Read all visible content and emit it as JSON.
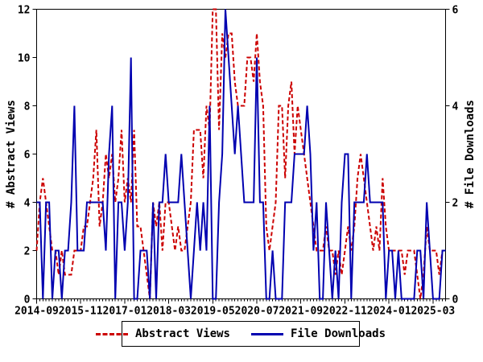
{
  "chart_data": {
    "type": "line",
    "title": "",
    "x_start": "2014-09",
    "x_end": "2025-07",
    "months_count": 131,
    "x_tick_labels": [
      "2014-09",
      "2015-11",
      "2017-01",
      "2018-03",
      "2019-05",
      "2020-07",
      "2021-09",
      "2022-11",
      "2024-01",
      "2025-03"
    ],
    "x_tick_indices": [
      0,
      14,
      28,
      42,
      56,
      70,
      84,
      98,
      112,
      126
    ],
    "x_minor_tick_every_months": 1,
    "grid": "off",
    "left_axis": {
      "label": "# Abstract Views",
      "min": 0,
      "max": 12,
      "ticks": [
        0,
        2,
        4,
        6,
        8,
        10,
        12
      ]
    },
    "right_axis": {
      "label": "# File Downloads",
      "min": 0,
      "max": 6,
      "ticks": [
        0,
        2,
        4,
        6
      ]
    },
    "legend": {
      "position": "bottom-center"
    },
    "series": [
      {
        "name": "Abstract Views",
        "axis": "left",
        "color": "#cc0000",
        "style": "dashed",
        "values": [
          2,
          4,
          5,
          4,
          3,
          2,
          2,
          1,
          2,
          1,
          1,
          1,
          2,
          2,
          2,
          3,
          3,
          4,
          5,
          7,
          3,
          4,
          6,
          5,
          6,
          4,
          5,
          7,
          4,
          5,
          4,
          7,
          3,
          3,
          2,
          1,
          0,
          4,
          3,
          4,
          2,
          4,
          4,
          3,
          2,
          3,
          2,
          2,
          3,
          4,
          7,
          7,
          7,
          5,
          8,
          7,
          12,
          12,
          7,
          11,
          10,
          11,
          11,
          9,
          8,
          8,
          8,
          10,
          10,
          9,
          11,
          9,
          8,
          3,
          2,
          3,
          4,
          8,
          8,
          5,
          8,
          9,
          6,
          8,
          7,
          6,
          5,
          4,
          3,
          2,
          2,
          2,
          3,
          2,
          2,
          1,
          2,
          1,
          2,
          3,
          2,
          3,
          5,
          6,
          5,
          4,
          3,
          2,
          3,
          2,
          5,
          3,
          2,
          2,
          2,
          2,
          2,
          1,
          2,
          2,
          2,
          1,
          0,
          1,
          3,
          2,
          2,
          2,
          1,
          2,
          2
        ]
      },
      {
        "name": "File Downloads",
        "axis": "right",
        "color": "#0000b0",
        "style": "solid",
        "values": [
          2,
          2,
          0,
          2,
          2,
          0,
          1,
          1,
          0,
          1,
          1,
          2,
          4,
          1,
          1,
          1,
          2,
          2,
          2,
          2,
          2,
          2,
          1,
          3,
          4,
          0,
          2,
          2,
          1,
          2,
          5,
          0,
          0,
          1,
          1,
          1,
          0,
          2,
          0,
          2,
          2,
          3,
          2,
          2,
          2,
          2,
          3,
          2,
          1,
          0,
          1,
          2,
          1,
          2,
          1,
          4,
          0,
          0,
          2,
          3,
          6,
          5,
          4,
          3,
          4,
          3,
          2,
          2,
          2,
          2,
          5,
          2,
          2,
          0,
          0,
          1,
          0,
          0,
          0,
          2,
          2,
          2,
          3,
          3,
          3,
          3,
          4,
          3,
          1,
          2,
          0,
          0,
          2,
          1,
          0,
          1,
          0,
          2,
          3,
          3,
          0,
          2,
          2,
          2,
          2,
          3,
          2,
          2,
          2,
          2,
          2,
          0,
          1,
          1,
          0,
          1,
          0,
          0,
          0,
          0,
          0,
          1,
          1,
          0,
          2,
          1,
          0,
          0,
          0,
          1,
          1
        ]
      }
    ]
  }
}
